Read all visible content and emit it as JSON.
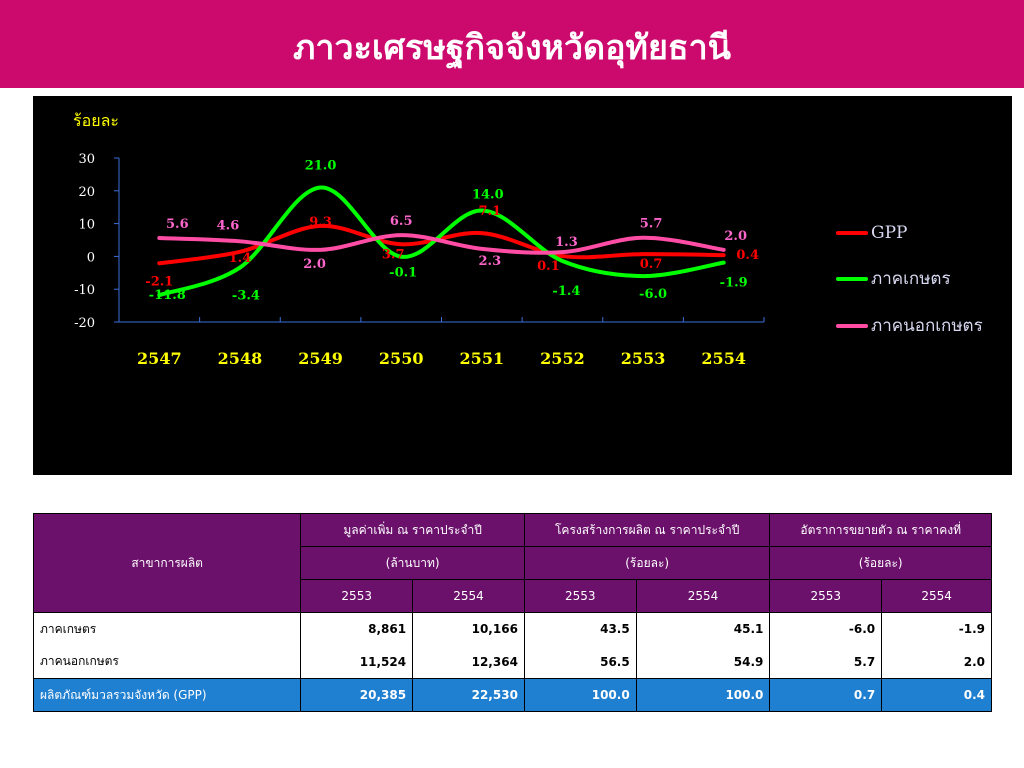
{
  "page_title": "ภาวะเศรษฐกิจจังหวัดอุทัยธานี",
  "chart_data": {
    "type": "line",
    "ylabel": "ร้อยละ",
    "ylim": [
      -20,
      30
    ],
    "yticks": [
      30,
      20,
      10,
      0,
      -10,
      -20
    ],
    "categories": [
      "2547",
      "2548",
      "2549",
      "2550",
      "2551",
      "2552",
      "2553",
      "2554"
    ],
    "legend_position": "right",
    "series": [
      {
        "name": "GPP",
        "color": "#ff0000",
        "label_color": "#ff0000",
        "values": [
          -2.1,
          1.4,
          9.3,
          3.7,
          7.1,
          0.1,
          0.7,
          0.4
        ]
      },
      {
        "name": "ภาคเกษตร",
        "color": "#00ff00",
        "label_color": "#00ff00",
        "values": [
          -11.8,
          -3.4,
          21.0,
          -0.1,
          14.0,
          -1.4,
          -6.0,
          -1.9
        ]
      },
      {
        "name": "ภาคนอกเกษตร",
        "color": "#ff4da6",
        "label_color": "#ff66cc",
        "values": [
          5.6,
          4.6,
          2.0,
          6.5,
          2.3,
          1.3,
          5.7,
          2.0
        ]
      }
    ]
  },
  "table": {
    "col_header": "สาขาการผลิต",
    "groups": [
      {
        "title": "มูลค่าเพิ่ม ณ ราคาประจำปี",
        "unit": "(ล้านบาท)"
      },
      {
        "title": "โครงสร้างการผลิต ณ ราคาประจำปี",
        "unit": "(ร้อยละ)"
      },
      {
        "title": "อัตราการขยายตัว ณ ราคาคงที่",
        "unit": "(ร้อยละ)"
      }
    ],
    "years": [
      "2553",
      "2554",
      "2553",
      "2554",
      "2553",
      "2554"
    ],
    "rows": [
      {
        "label": "ภาคเกษตร",
        "values": [
          "8,861",
          "10,166",
          "43.5",
          "45.1",
          "-6.0",
          "-1.9"
        ]
      },
      {
        "label": "ภาคนอกเกษตร",
        "values": [
          "11,524",
          "12,364",
          "56.5",
          "54.9",
          "5.7",
          "2.0"
        ]
      },
      {
        "label": "ผลิตภัณฑ์มวลรวมจังหวัด (GPP)",
        "values": [
          "20,385",
          "22,530",
          "100.0",
          "100.0",
          "0.7",
          "0.4"
        ]
      }
    ],
    "negative_color": "#e00000"
  }
}
